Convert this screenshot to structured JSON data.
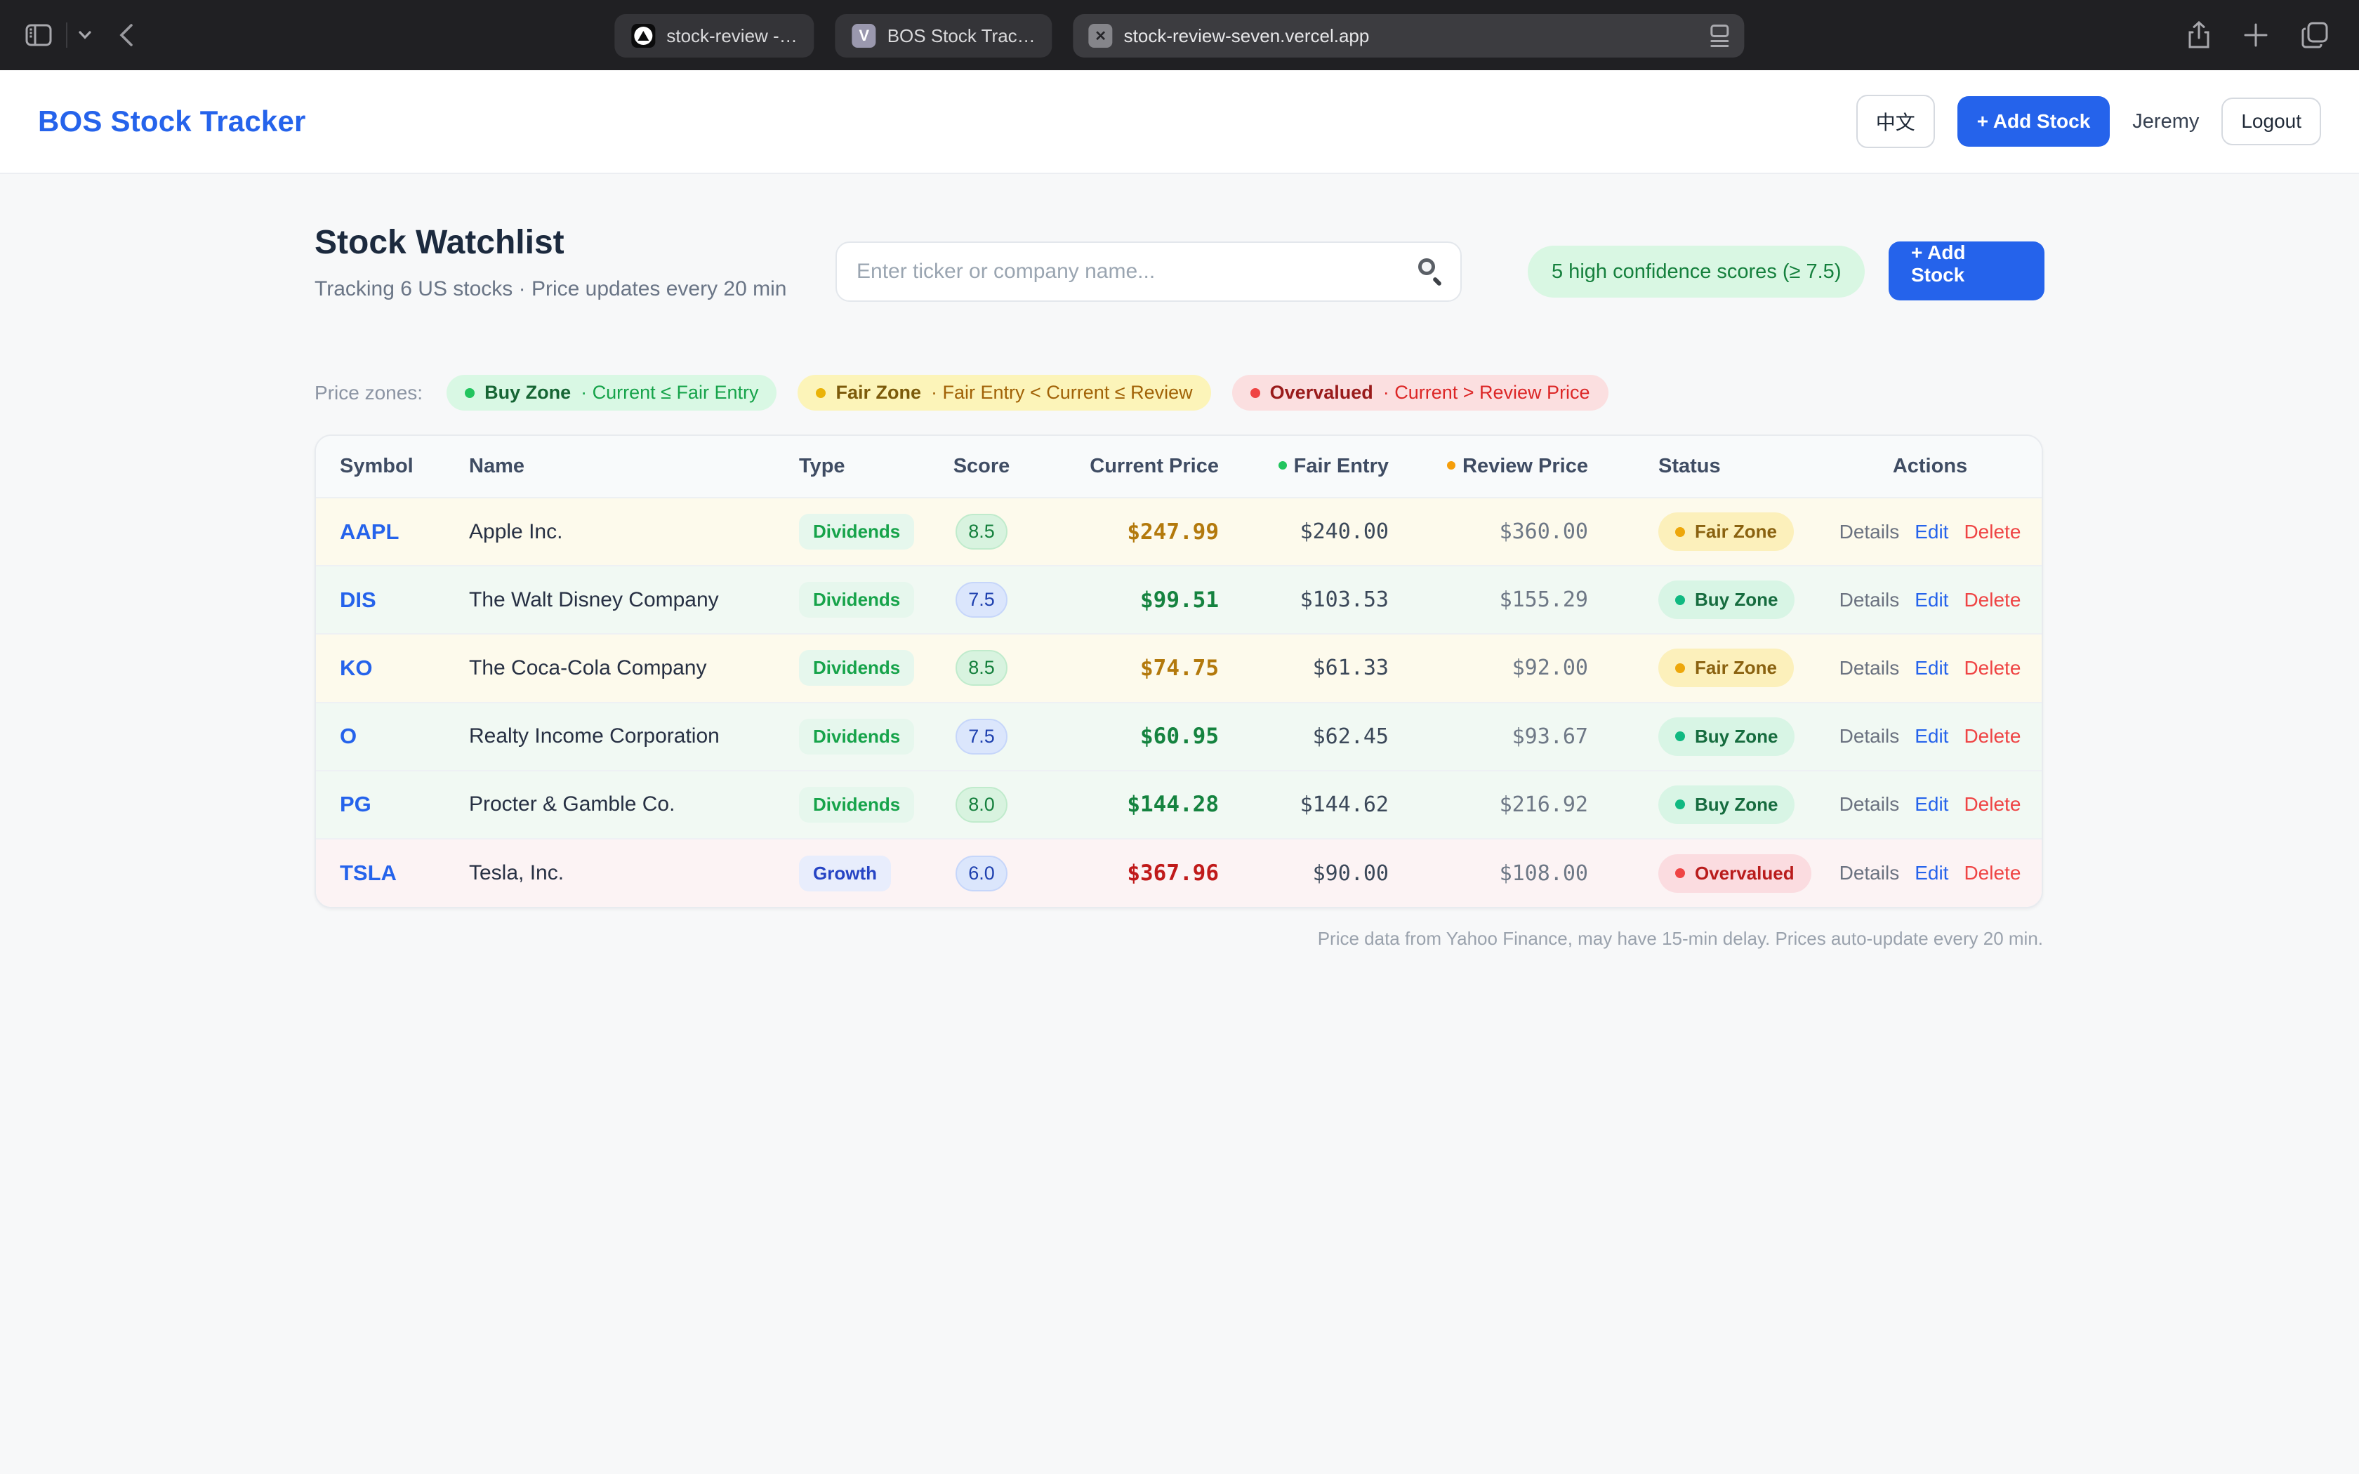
{
  "browser": {
    "tabs": [
      {
        "label": "stock-review -…",
        "favicon": "vercel-triangle"
      },
      {
        "label": "BOS Stock Trac…",
        "favicon": "letter-v"
      },
      {
        "label": "stock-review-seven.vercel.app",
        "favicon": "close-x",
        "active": true
      }
    ],
    "close_glyph": "✕",
    "v_glyph": "V"
  },
  "header": {
    "logo": "BOS Stock Tracker",
    "lang_button": "中文",
    "add_stock_button": "+ Add Stock",
    "username": "Jeremy",
    "logout_button": "Logout"
  },
  "page": {
    "title": "Stock Watchlist",
    "subtitle": "Tracking 6 US stocks · Price updates every 20 min",
    "search_placeholder": "Enter ticker or company name...",
    "confidence_badge": "5 high confidence scores (≥ 7.5)",
    "add_stock_button": "+ Add Stock",
    "legend_label": "Price zones:",
    "legend": [
      {
        "name": "Buy Zone",
        "desc": "· Current ≤ Fair Entry",
        "zone": "buy"
      },
      {
        "name": "Fair Zone",
        "desc": "· Fair Entry < Current ≤ Review",
        "zone": "fair"
      },
      {
        "name": "Overvalued",
        "desc": "· Current > Review Price",
        "zone": "over"
      }
    ],
    "footer_note": "Price data from Yahoo Finance, may have 15-min delay. Prices auto-update every 20 min."
  },
  "table": {
    "columns": [
      {
        "label": "Symbol"
      },
      {
        "label": "Name"
      },
      {
        "label": "Type"
      },
      {
        "label": "Score"
      },
      {
        "label": "Current Price"
      },
      {
        "label": "Fair Entry",
        "dot": "green"
      },
      {
        "label": "Review Price",
        "dot": "amber"
      },
      {
        "label": "Status"
      },
      {
        "label": "Actions"
      }
    ],
    "actions": [
      "Details",
      "Edit",
      "Delete"
    ],
    "rows": [
      {
        "symbol": "AAPL",
        "name": "Apple Inc.",
        "type": "Dividends",
        "score": "8.5",
        "current": "$247.99",
        "fair": "$240.00",
        "review": "$360.00",
        "status": "Fair Zone",
        "zone": "fair"
      },
      {
        "symbol": "DIS",
        "name": "The Walt Disney Company",
        "type": "Dividends",
        "score": "7.5",
        "current": "$99.51",
        "fair": "$103.53",
        "review": "$155.29",
        "status": "Buy Zone",
        "zone": "buy"
      },
      {
        "symbol": "KO",
        "name": "The Coca-Cola Company",
        "type": "Dividends",
        "score": "8.5",
        "current": "$74.75",
        "fair": "$61.33",
        "review": "$92.00",
        "status": "Fair Zone",
        "zone": "fair"
      },
      {
        "symbol": "O",
        "name": "Realty Income Corporation",
        "type": "Dividends",
        "score": "7.5",
        "current": "$60.95",
        "fair": "$62.45",
        "review": "$93.67",
        "status": "Buy Zone",
        "zone": "buy"
      },
      {
        "symbol": "PG",
        "name": "Procter & Gamble Co.",
        "type": "Dividends",
        "score": "8.0",
        "current": "$144.28",
        "fair": "$144.62",
        "review": "$216.92",
        "status": "Buy Zone",
        "zone": "buy"
      },
      {
        "symbol": "TSLA",
        "name": "Tesla, Inc.",
        "type": "Growth",
        "score": "6.0",
        "current": "$367.96",
        "fair": "$90.00",
        "review": "$108.00",
        "status": "Overvalued",
        "zone": "over"
      }
    ]
  },
  "colors": {
    "accent_blue": "#2563eb",
    "buy_zone_green": "#22c55e",
    "fair_zone_amber": "#eab308",
    "overvalued_red": "#ef4444",
    "chrome_background": "#202023"
  }
}
